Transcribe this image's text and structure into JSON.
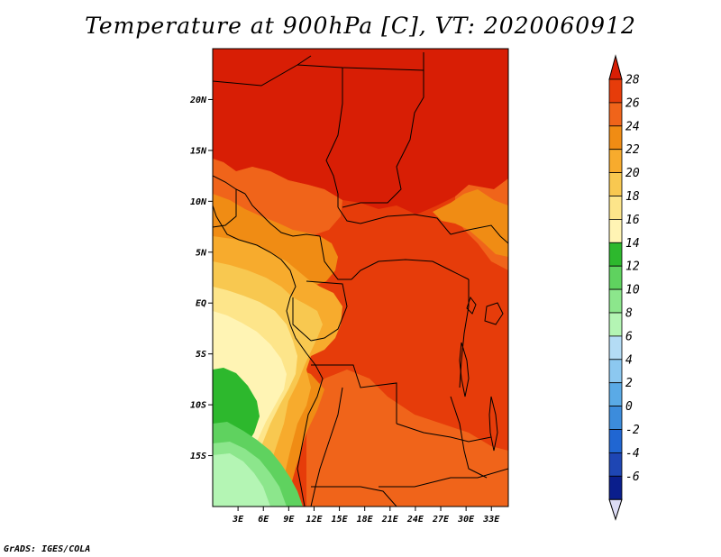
{
  "title": "Temperature at 900hPa [C], VT: 2020060912",
  "footer": "GrADS: IGES/COLA",
  "map": {
    "region": "Central Africa",
    "lon_range": [
      0,
      35
    ],
    "lat_range": [
      -20,
      25
    ],
    "lat_ticks": [
      {
        "value": 20,
        "label": "20N"
      },
      {
        "value": 15,
        "label": "15N"
      },
      {
        "value": 10,
        "label": "10N"
      },
      {
        "value": 5,
        "label": "5N"
      },
      {
        "value": 0,
        "label": "EQ"
      },
      {
        "value": -5,
        "label": "5S"
      },
      {
        "value": -10,
        "label": "10S"
      },
      {
        "value": -15,
        "label": "15S"
      }
    ],
    "lon_ticks": [
      {
        "value": 3,
        "label": "3E"
      },
      {
        "value": 6,
        "label": "6E"
      },
      {
        "value": 9,
        "label": "9E"
      },
      {
        "value": 12,
        "label": "12E"
      },
      {
        "value": 15,
        "label": "15E"
      },
      {
        "value": 18,
        "label": "18E"
      },
      {
        "value": 21,
        "label": "21E"
      },
      {
        "value": 24,
        "label": "24E"
      },
      {
        "value": 27,
        "label": "27E"
      },
      {
        "value": 30,
        "label": "30E"
      },
      {
        "value": 33,
        "label": "33E"
      }
    ]
  },
  "colorbar": {
    "labels": [
      "28",
      "26",
      "24",
      "22",
      "20",
      "18",
      "16",
      "14",
      "12",
      "10",
      "8",
      "6",
      "4",
      "2",
      "0",
      "-2",
      "-4",
      "-6"
    ],
    "colors": [
      "#d81e05",
      "#e63c0a",
      "#f0641a",
      "#f08c14",
      "#f7ab2d",
      "#f8c850",
      "#fde58a",
      "#fff4b4",
      "#2db82d",
      "#5fd25f",
      "#8ce68c",
      "#b4f5b4",
      "#b4dcf5",
      "#8cc8f0",
      "#5aaae6",
      "#3c8cdc",
      "#2066d2",
      "#1e46b4",
      "#0a1e8c",
      "#dcdcf5"
    ]
  },
  "colors": {
    "t28": "#d81e05",
    "t26": "#e63c0a",
    "t24": "#f0641a",
    "t22": "#f08c14",
    "t20": "#f7ab2d",
    "t18": "#f8c850",
    "t16": "#fde58a",
    "t14": "#fff4b4",
    "t12": "#2db82d",
    "t10": "#5fd25f",
    "t8": "#8ce68c",
    "t6": "#b4f5b4"
  }
}
